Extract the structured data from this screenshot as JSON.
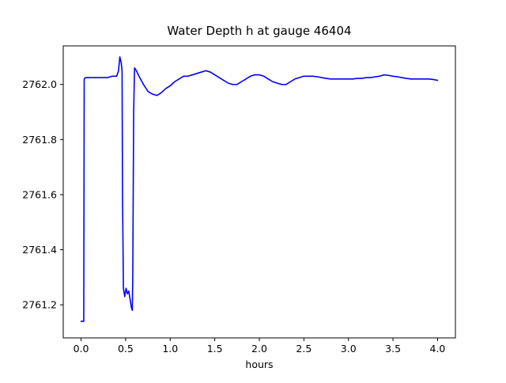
{
  "figure": {
    "background": "#ffffff"
  },
  "chart_data": {
    "type": "line",
    "title": "Water Depth h at gauge 46404",
    "xlabel": "hours",
    "ylabel": "",
    "legend": null,
    "grid": false,
    "line_color": "#0000ff",
    "axes_color": "#000000",
    "xlim": [
      -0.2,
      4.2
    ],
    "ylim": [
      2761.08,
      2762.14
    ],
    "xticks": [
      0.0,
      0.5,
      1.0,
      1.5,
      2.0,
      2.5,
      3.0,
      3.5,
      4.0
    ],
    "xtick_labels": [
      "0.0",
      "0.5",
      "1.0",
      "1.5",
      "2.0",
      "2.5",
      "3.0",
      "3.5",
      "4.0"
    ],
    "yticks": [
      2761.2,
      2761.4,
      2761.6,
      2761.8,
      2762.0
    ],
    "ytick_labels": [
      "2761.2",
      "2761.4",
      "2761.6",
      "2761.8",
      "2762.0"
    ],
    "series": [
      {
        "name": "water-depth-h",
        "x": [
          0.0,
          0.03,
          0.035,
          0.05,
          0.1,
          0.15,
          0.2,
          0.25,
          0.3,
          0.35,
          0.4,
          0.42,
          0.435,
          0.45,
          0.46,
          0.465,
          0.475,
          0.49,
          0.505,
          0.52,
          0.535,
          0.55,
          0.565,
          0.575,
          0.58,
          0.59,
          0.6,
          0.62,
          0.65,
          0.7,
          0.75,
          0.8,
          0.85,
          0.9,
          0.95,
          1.0,
          1.05,
          1.1,
          1.15,
          1.2,
          1.25,
          1.3,
          1.35,
          1.4,
          1.45,
          1.5,
          1.55,
          1.6,
          1.65,
          1.7,
          1.75,
          1.8,
          1.85,
          1.9,
          1.95,
          2.0,
          2.05,
          2.1,
          2.15,
          2.2,
          2.25,
          2.3,
          2.35,
          2.4,
          2.45,
          2.5,
          2.55,
          2.6,
          2.65,
          2.7,
          2.75,
          2.8,
          2.85,
          2.9,
          2.95,
          3.0,
          3.05,
          3.1,
          3.15,
          3.2,
          3.25,
          3.3,
          3.35,
          3.4,
          3.45,
          3.5,
          3.55,
          3.6,
          3.65,
          3.7,
          3.75,
          3.8,
          3.85,
          3.9,
          3.95,
          4.0
        ],
        "y": [
          2761.14,
          2761.14,
          2762.02,
          2762.025,
          2762.025,
          2762.025,
          2762.025,
          2762.025,
          2762.025,
          2762.03,
          2762.03,
          2762.05,
          2762.1,
          2762.08,
          2762.05,
          2761.6,
          2761.26,
          2761.23,
          2761.26,
          2761.24,
          2761.25,
          2761.22,
          2761.19,
          2761.18,
          2761.3,
          2761.9,
          2762.06,
          2762.05,
          2762.03,
          2762.0,
          2761.975,
          2761.965,
          2761.96,
          2761.97,
          2761.985,
          2761.995,
          2762.01,
          2762.02,
          2762.03,
          2762.03,
          2762.035,
          2762.04,
          2762.045,
          2762.05,
          2762.045,
          2762.035,
          2762.025,
          2762.015,
          2762.005,
          2762.0,
          2762.0,
          2762.01,
          2762.02,
          2762.03,
          2762.035,
          2762.035,
          2762.03,
          2762.02,
          2762.01,
          2762.005,
          2762.0,
          2762.0,
          2762.01,
          2762.02,
          2762.025,
          2762.03,
          2762.03,
          2762.03,
          2762.028,
          2762.025,
          2762.022,
          2762.02,
          2762.02,
          2762.02,
          2762.02,
          2762.02,
          2762.02,
          2762.022,
          2762.022,
          2762.025,
          2762.025,
          2762.028,
          2762.03,
          2762.035,
          2762.033,
          2762.03,
          2762.028,
          2762.025,
          2762.022,
          2762.02,
          2762.02,
          2762.02,
          2762.02,
          2762.02,
          2762.018,
          2762.015
        ]
      }
    ]
  }
}
